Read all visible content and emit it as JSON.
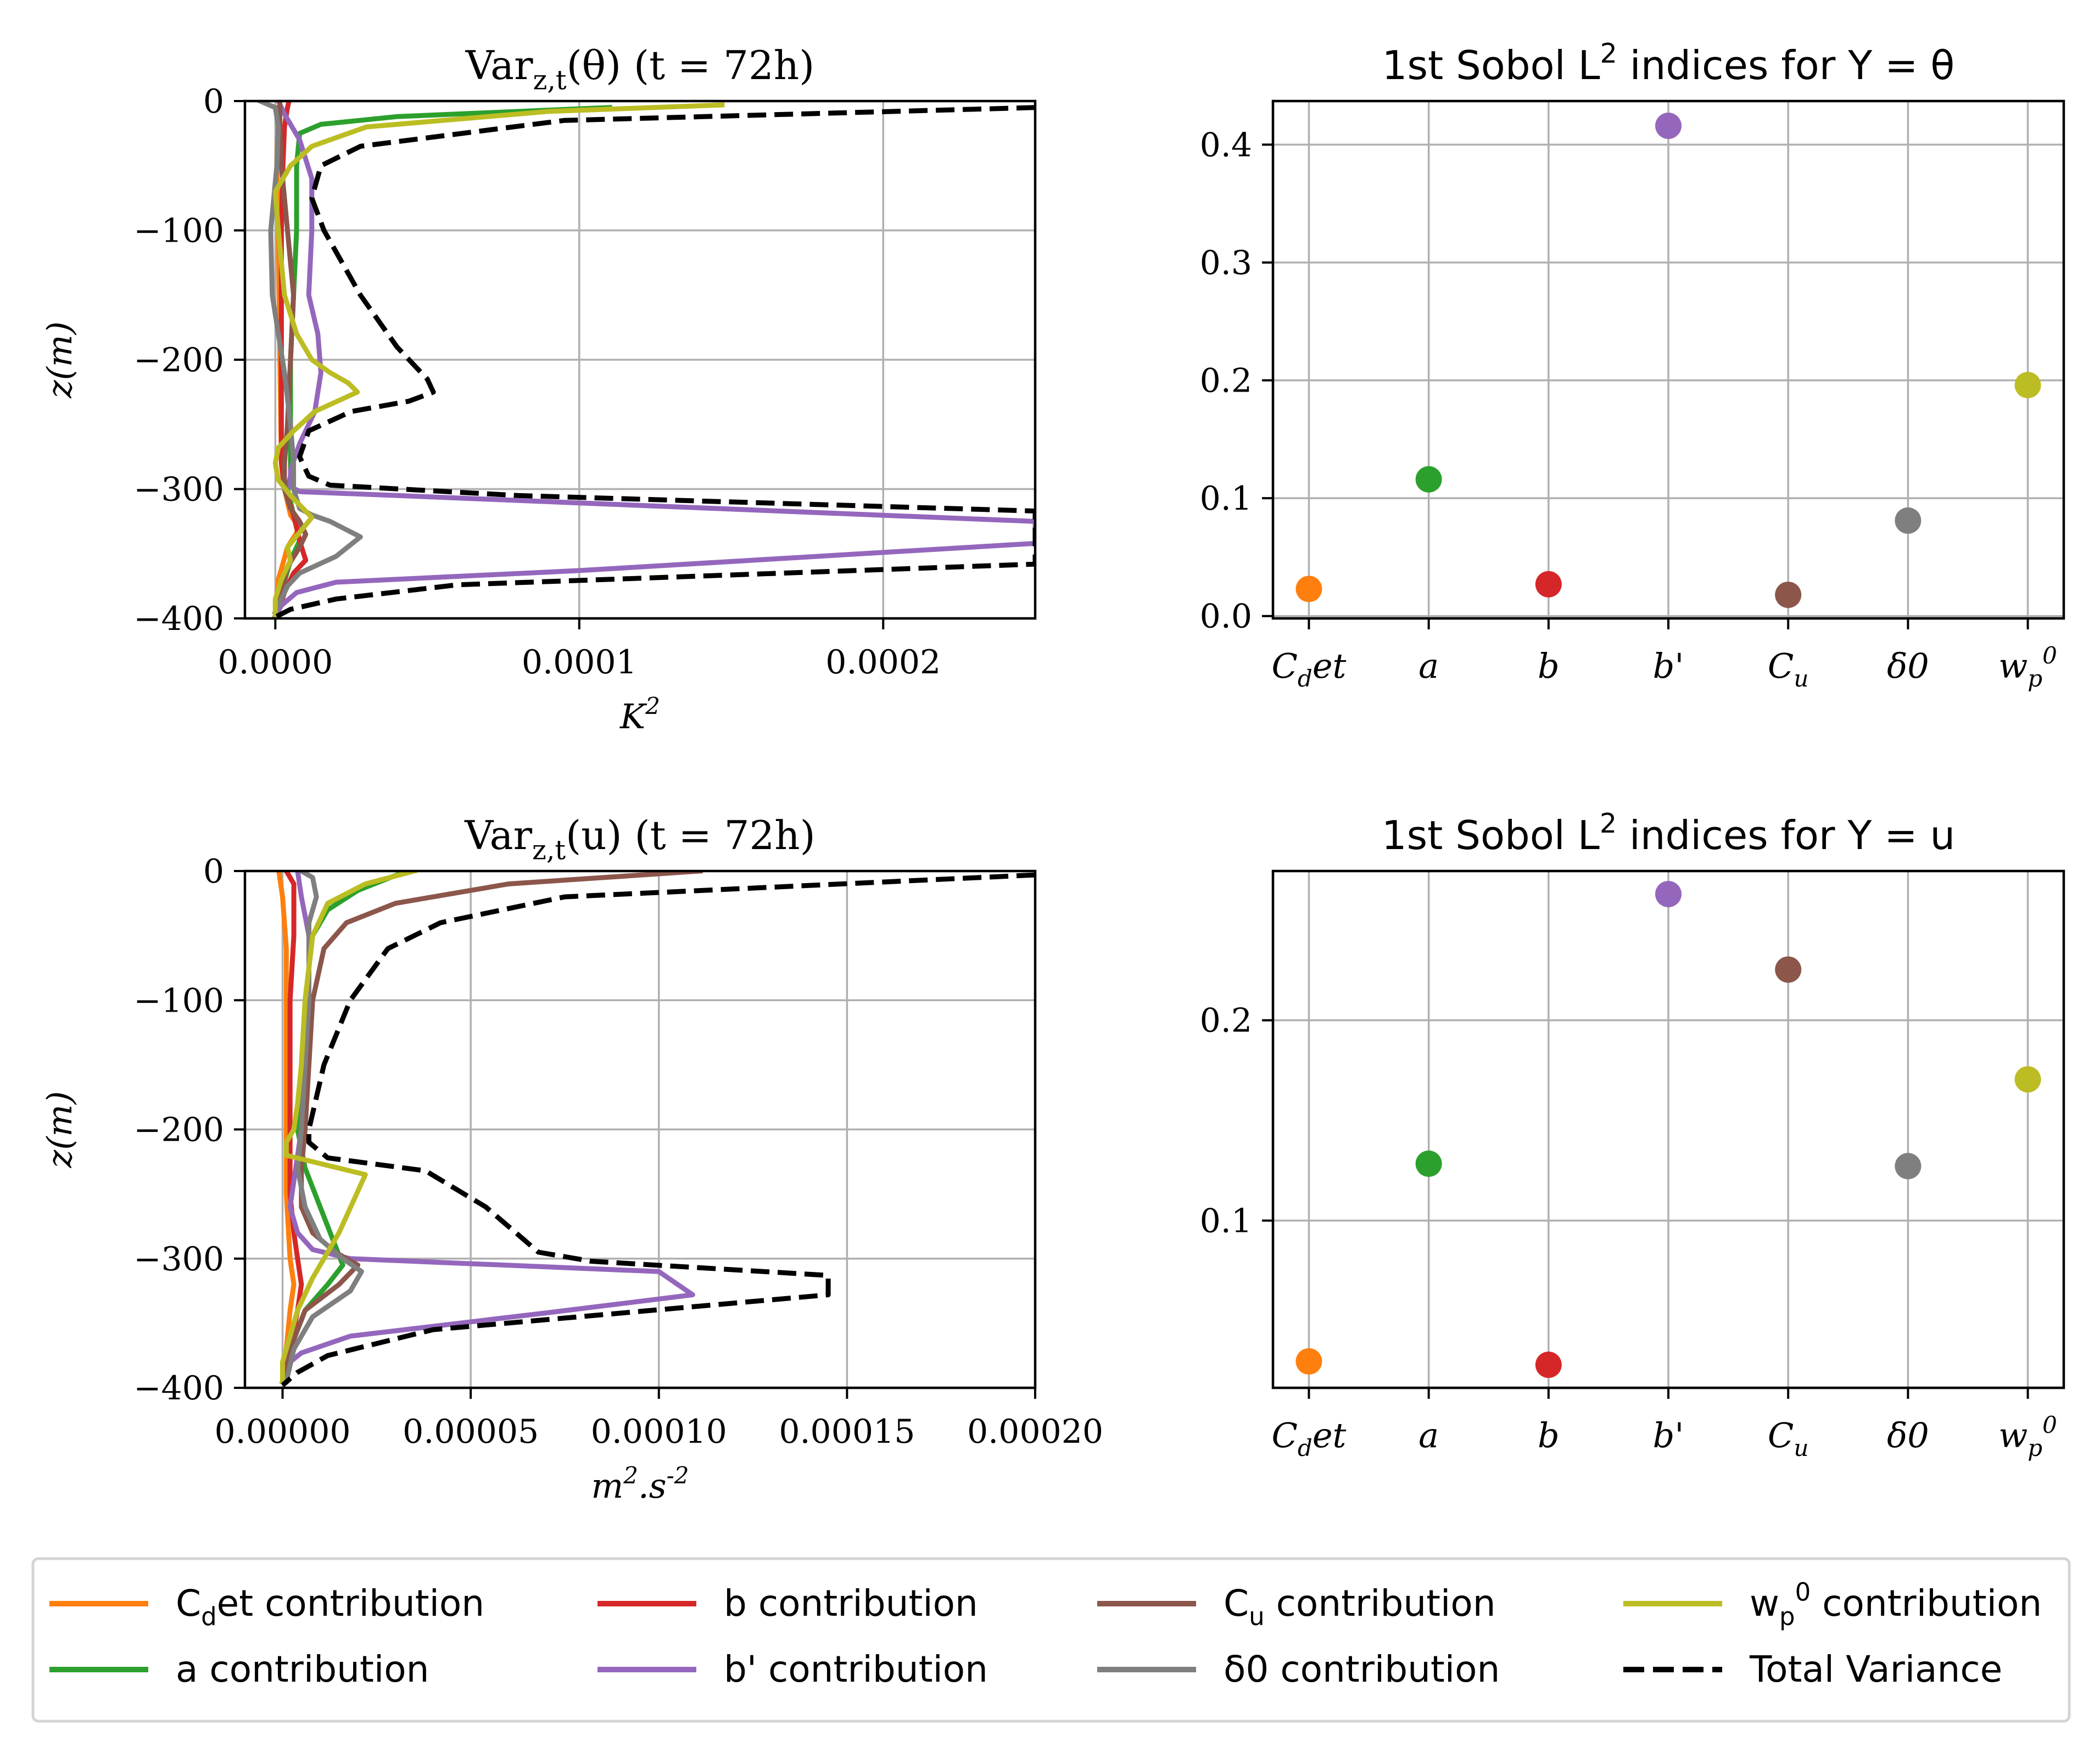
{
  "legend": {
    "entries": [
      {
        "label": "C_det contribution",
        "color": "#ff7f0e",
        "dashed": false
      },
      {
        "label": "a contribution",
        "color": "#2ca02c",
        "dashed": false
      },
      {
        "label": "b contribution",
        "color": "#d62728",
        "dashed": false
      },
      {
        "label": "b' contribution",
        "color": "#9467bd",
        "dashed": false
      },
      {
        "label": "C_u contribution",
        "color": "#8c564b",
        "dashed": false
      },
      {
        "label": "δ0 contribution",
        "color": "#7f7f7f",
        "dashed": false
      },
      {
        "label": "w_p^0 contribution",
        "color": "#bcbd22",
        "dashed": false
      },
      {
        "label": "Total Variance",
        "color": "#000000",
        "dashed": true
      }
    ]
  },
  "chart_data": [
    {
      "type": "line",
      "title": "Var_{z,t}(θ) (t = 72h)",
      "xlabel": "K^2",
      "ylabel": "z(m)",
      "xlim": [
        -1e-05,
        0.00025
      ],
      "ylim": [
        -400,
        0
      ],
      "xticks": [
        "0.0000",
        "0.0001",
        "0.0002"
      ],
      "xtick_values": [
        0,
        0.0001,
        0.0002
      ],
      "yticks": [
        "0",
        "−100",
        "−200",
        "−300",
        "−400"
      ],
      "ytick_values": [
        0,
        -100,
        -200,
        -300,
        -400
      ],
      "grid": true,
      "series": [
        {
          "name": "C_det contribution",
          "color": "#ff7f0e",
          "x": [
            1e-06,
            5e-07,
            1e-06,
            1.5e-06,
            2e-06,
            3e-06,
            5e-06,
            8e-06,
            4e-06,
            1e-06,
            0.0
          ],
          "y": [
            -5,
            -50,
            -100,
            -200,
            -280,
            -300,
            -320,
            -330,
            -345,
            -370,
            -395
          ]
        },
        {
          "name": "a contribution",
          "color": "#2ca02c",
          "x": [
            0.00011,
            4e-05,
            1.5e-05,
            8e-06,
            7e-06,
            7e-06,
            6e-06,
            5e-06,
            5e-06,
            5e-06,
            4e-06,
            6e-06,
            8e-06,
            5e-06,
            2e-06,
            0.0
          ],
          "y": [
            -5,
            -12,
            -18,
            -25,
            -50,
            -100,
            -150,
            -200,
            -250,
            -290,
            -300,
            -320,
            -340,
            -355,
            -380,
            -395
          ]
        },
        {
          "name": "b contribution",
          "color": "#d62728",
          "x": [
            4.5e-06,
            4e-06,
            3e-06,
            2.5e-06,
            2e-06,
            2e-06,
            2e-06,
            3e-06,
            6e-06,
            8e-06,
            1e-05,
            6e-06,
            3e-06,
            1e-06
          ],
          "y": [
            0,
            -5,
            -20,
            -50,
            -100,
            -200,
            -280,
            -300,
            -320,
            -340,
            -355,
            -365,
            -380,
            -395
          ]
        },
        {
          "name": "b' contribution",
          "color": "#9467bd",
          "x": [
            1e-06,
            3e-06,
            8e-06,
            1.2e-05,
            1.2e-05,
            1.1e-05,
            1.4e-05,
            1.5e-05,
            1.3e-05,
            8e-06,
            5e-06,
            5e-06,
            8e-06,
            4e-05,
            0.00025,
            0.00025,
            0.0001,
            2e-05,
            7e-06,
            2e-06,
            0.0
          ],
          "y": [
            0,
            -10,
            -30,
            -60,
            -100,
            -150,
            -180,
            -210,
            -240,
            -265,
            -285,
            -298,
            -302,
            -305,
            -325,
            -342,
            -363,
            -372,
            -380,
            -390,
            -398
          ]
        },
        {
          "name": "C_u contribution",
          "color": "#8c564b",
          "x": [
            1.5e-06,
            1.5e-06,
            2e-06,
            4e-06,
            6e-06,
            5e-06,
            4e-06,
            3e-06,
            3e-06,
            5e-06,
            8e-06,
            1e-05,
            8e-06,
            4e-06,
            2e-06,
            0.0
          ],
          "y": [
            0,
            -20,
            -50,
            -100,
            -150,
            -200,
            -250,
            -280,
            -300,
            -315,
            -325,
            -335,
            -345,
            -360,
            -380,
            -395
          ]
        },
        {
          "name": "δ0 contribution",
          "color": "#7f7f7f",
          "x": [
            -5e-06,
            0.0,
            1e-06,
            5e-07,
            -1.5e-06,
            -1e-06,
            1e-06,
            3e-06,
            5e-06,
            6e-06,
            6e-06,
            8e-06,
            1.2e-05,
            1.8e-05,
            2.8e-05,
            2e-05,
            8e-06,
            4e-06,
            2e-06,
            0.0
          ],
          "y": [
            0,
            -5,
            -20,
            -50,
            -100,
            -150,
            -180,
            -210,
            -250,
            -280,
            -300,
            -315,
            -320,
            -325,
            -337,
            -352,
            -365,
            -375,
            -385,
            -395
          ]
        },
        {
          "name": "w_p^0 contribution",
          "color": "#bcbd22",
          "x": [
            0.000147,
            9e-05,
            3e-05,
            1.2e-05,
            5e-06,
            0.0,
            1e-06,
            3e-06,
            7e-06,
            1.2e-05,
            1.8e-05,
            2.4e-05,
            2.7e-05,
            1.3e-05,
            6e-06,
            1e-06,
            0.0,
            1e-06,
            5e-06,
            1.2e-05,
            4e-06,
            5e-06,
            2e-06,
            0.0,
            0.0
          ],
          "y": [
            -3,
            -8,
            -20,
            -35,
            -50,
            -70,
            -100,
            -150,
            -180,
            -200,
            -210,
            -218,
            -225,
            -240,
            -255,
            -268,
            -280,
            -293,
            -305,
            -322,
            -345,
            -355,
            -370,
            -385,
            -398
          ]
        },
        {
          "name": "Total Variance",
          "color": "#000000",
          "dashed": true,
          "x": [
            0.00025,
            9.5e-05,
            2.8e-05,
            1.5e-05,
            1.2e-05,
            1.6e-05,
            2.8e-05,
            4e-05,
            5e-05,
            5.2e-05,
            4.4e-05,
            2.5e-05,
            1.1e-05,
            8e-06,
            1.1e-05,
            1.8e-05,
            8e-05,
            0.00025,
            0.00025,
            6e-05,
            2e-05,
            5e-06,
            0.0
          ],
          "y": [
            -5,
            -15,
            -35,
            -50,
            -75,
            -100,
            -150,
            -190,
            -215,
            -225,
            -232,
            -240,
            -255,
            -275,
            -290,
            -297,
            -305,
            -317,
            -358,
            -374,
            -385,
            -393,
            -399
          ]
        }
      ]
    },
    {
      "type": "scatter",
      "title": "1st Sobol L^2 indices for Y = θ",
      "categories": [
        "C_det",
        "a",
        "b",
        "b'",
        "C_u",
        "δ0",
        "w_p^0"
      ],
      "values": [
        0.023,
        0.116,
        0.027,
        0.416,
        0.018,
        0.081,
        0.196
      ],
      "colors": [
        "#ff7f0e",
        "#2ca02c",
        "#d62728",
        "#9467bd",
        "#8c564b",
        "#7f7f7f",
        "#bcbd22"
      ],
      "ylim": [
        -0.002,
        0.437
      ],
      "yticks": [
        "0.0",
        "0.1",
        "0.2",
        "0.3",
        "0.4"
      ],
      "ytick_values": [
        0,
        0.1,
        0.2,
        0.3,
        0.4
      ],
      "grid": true
    },
    {
      "type": "line",
      "title": "Var_{z,t}(u) (t = 72h)",
      "xlabel": "m^2.s^{-2}",
      "ylabel": "z(m)",
      "xlim": [
        -1e-05,
        0.0002
      ],
      "ylim": [
        -400,
        0
      ],
      "xticks": [
        "0.00000",
        "0.00005",
        "0.00010",
        "0.00015",
        "0.00020"
      ],
      "xtick_values": [
        0,
        5e-05,
        0.0001,
        0.00015,
        0.0002
      ],
      "yticks": [
        "0",
        "−100",
        "−200",
        "−300",
        "−400"
      ],
      "ytick_values": [
        0,
        -100,
        -200,
        -300,
        -400
      ],
      "grid": true,
      "series": [
        {
          "name": "C_det contribution",
          "color": "#ff7f0e",
          "x": [
            -1e-06,
            0.0,
            1e-06,
            1e-06,
            1e-06,
            2e-06,
            3e-06,
            2e-06,
            1e-06,
            0.0
          ],
          "y": [
            0,
            -20,
            -60,
            -150,
            -250,
            -300,
            -320,
            -340,
            -370,
            -395
          ]
        },
        {
          "name": "a contribution",
          "color": "#2ca02c",
          "x": [
            3.3e-05,
            2e-05,
            1.2e-05,
            8e-06,
            6e-06,
            5e-06,
            4e-06,
            6e-06,
            1e-05,
            1.4e-05,
            1.6e-05,
            1.2e-05,
            6e-06,
            2e-06,
            0.0
          ],
          "y": [
            0,
            -15,
            -30,
            -50,
            -100,
            -150,
            -200,
            -230,
            -260,
            -290,
            -305,
            -320,
            -340,
            -370,
            -395
          ]
        },
        {
          "name": "b contribution",
          "color": "#d62728",
          "x": [
            1e-06,
            3e-06,
            3e-06,
            2e-06,
            2e-06,
            2e-06,
            3e-06,
            4e-06,
            5e-06,
            4e-06,
            2e-06,
            0.0
          ],
          "y": [
            0,
            -10,
            -50,
            -100,
            -200,
            -250,
            -280,
            -300,
            -320,
            -340,
            -370,
            -395
          ]
        },
        {
          "name": "b' contribution",
          "color": "#9467bd",
          "x": [
            4e-06,
            5e-06,
            7e-06,
            7e-06,
            6e-06,
            5e-06,
            3e-06,
            2e-06,
            4e-06,
            8e-06,
            1.8e-05,
            0.0001,
            0.000109,
            7e-05,
            1.8e-05,
            5e-06,
            2e-06
          ],
          "y": [
            0,
            -20,
            -50,
            -100,
            -150,
            -200,
            -240,
            -260,
            -280,
            -293,
            -300,
            -310,
            -328,
            -342,
            -360,
            -373,
            -380
          ]
        },
        {
          "name": "C_u contribution",
          "color": "#8c564b",
          "x": [
            0.000111,
            6e-05,
            3e-05,
            1.7e-05,
            1.1e-05,
            8e-06,
            7e-06,
            6e-06,
            5e-06,
            5e-06,
            8e-06,
            1.4e-05,
            2e-05,
            1.5e-05,
            6e-06,
            2e-06,
            0.0
          ],
          "y": [
            0,
            -10,
            -25,
            -40,
            -60,
            -100,
            -150,
            -200,
            -230,
            -260,
            -280,
            -295,
            -305,
            -320,
            -340,
            -370,
            -395
          ]
        },
        {
          "name": "δ0 contribution",
          "color": "#7f7f7f",
          "x": [
            5e-06,
            8e-06,
            9e-06,
            7e-06,
            7e-06,
            6e-06,
            5e-06,
            4e-06,
            6e-06,
            1e-05,
            1.6e-05,
            2.1e-05,
            1.8e-05,
            8e-06,
            3e-06,
            1e-06
          ],
          "y": [
            0,
            -5,
            -20,
            -40,
            -100,
            -150,
            -200,
            -230,
            -260,
            -285,
            -300,
            -310,
            -325,
            -345,
            -370,
            -395
          ]
        },
        {
          "name": "w_p^0 contribution",
          "color": "#bcbd22",
          "x": [
            3.5e-05,
            2.2e-05,
            1.2e-05,
            8e-06,
            6e-06,
            5e-06,
            4e-06,
            3e-06,
            1e-06,
            1e-06,
            2.2e-05,
            1.5e-05,
            8e-06,
            4e-06,
            2e-06,
            0.0,
            0.0
          ],
          "y": [
            0,
            -10,
            -25,
            -50,
            -100,
            -150,
            -180,
            -200,
            -210,
            -220,
            -235,
            -280,
            -315,
            -340,
            -360,
            -380,
            -395
          ]
        },
        {
          "name": "Total Variance",
          "color": "#000000",
          "dashed": true,
          "x": [
            0.0002,
            7.5e-05,
            4.2e-05,
            2.8e-05,
            1.8e-05,
            1.1e-05,
            7e-06,
            7e-06,
            1.2e-05,
            3.8e-05,
            5.4e-05,
            6.8e-05,
            8.2e-05,
            0.000145,
            0.000145,
            4e-05,
            1.2e-05,
            4e-06,
            0.0
          ],
          "y": [
            -3,
            -20,
            -40,
            -60,
            -100,
            -150,
            -200,
            -210,
            -222,
            -232,
            -260,
            -295,
            -302,
            -313,
            -328,
            -355,
            -375,
            -388,
            -398
          ]
        }
      ]
    },
    {
      "type": "scatter",
      "title": "1st Sobol L^2 indices for Y = u",
      "categories": [
        "C_det",
        "a",
        "b",
        "b'",
        "C_u",
        "δ0",
        "w_p^0"
      ],
      "values": [
        0.0297,
        0.1284,
        0.028,
        0.263,
        0.2253,
        0.1272,
        0.1705
      ],
      "colors": [
        "#ff7f0e",
        "#2ca02c",
        "#d62728",
        "#9467bd",
        "#8c564b",
        "#7f7f7f",
        "#bcbd22"
      ],
      "ylim": [
        0.0165,
        0.2745
      ],
      "yticks": [
        "0.1",
        "0.2"
      ],
      "ytick_values": [
        0.1,
        0.2
      ],
      "grid": true
    }
  ]
}
